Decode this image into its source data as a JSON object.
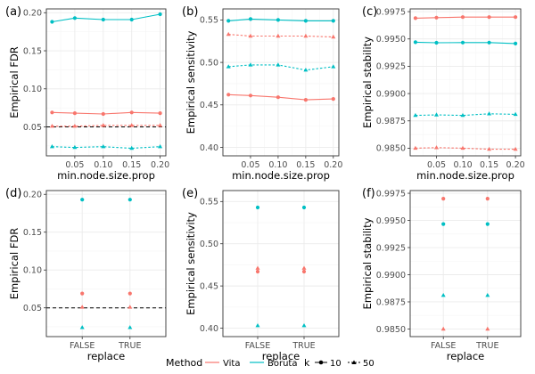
{
  "colors": {
    "vita": "#F8766D",
    "boruta": "#00BFC4",
    "grid_major": "#EBEBEB",
    "grid_minor": "#F5F5F5",
    "border": "#333333",
    "reference": "#000000"
  },
  "legend": {
    "method_title": "Method",
    "method_items": [
      "Vita",
      "Boruta"
    ],
    "k_title": "k",
    "k_items": [
      "10",
      "50"
    ]
  },
  "chart_data": [
    {
      "tag": "(a)",
      "type": "line",
      "xlabel": "min.node.size.prop",
      "ylabel": "Empirical FDR",
      "x": [
        0.01,
        0.05,
        0.1,
        0.15,
        0.2
      ],
      "xlim": [
        0.0,
        0.21
      ],
      "ylim": [
        0.012,
        0.205
      ],
      "xticks": [
        0.05,
        0.1,
        0.15,
        0.2
      ],
      "xtick_labels": [
        "0.05",
        "0.10",
        "0.15",
        "0.20"
      ],
      "yticks": [
        0.05,
        0.1,
        0.15,
        0.2
      ],
      "ytick_labels": [
        "0.05",
        "0.10",
        "0.15",
        "0.20"
      ],
      "reference_line": 0.05,
      "series": [
        {
          "name": "Vita",
          "k": "10",
          "values": [
            0.069,
            0.068,
            0.067,
            0.069,
            0.068
          ]
        },
        {
          "name": "Vita",
          "k": "50",
          "values": [
            0.051,
            0.051,
            0.052,
            0.052,
            0.052
          ]
        },
        {
          "name": "Boruta",
          "k": "10",
          "values": [
            0.188,
            0.193,
            0.191,
            0.191,
            0.198
          ]
        },
        {
          "name": "Boruta",
          "k": "50",
          "values": [
            0.024,
            0.023,
            0.024,
            0.022,
            0.024
          ]
        }
      ]
    },
    {
      "tag": "(b)",
      "type": "line",
      "xlabel": "min.node.size.prop",
      "ylabel": "Empirical sensitivity",
      "x": [
        0.01,
        0.05,
        0.1,
        0.15,
        0.2
      ],
      "xlim": [
        0.0,
        0.21
      ],
      "ylim": [
        0.39,
        0.563
      ],
      "xticks": [
        0.05,
        0.1,
        0.15,
        0.2
      ],
      "xtick_labels": [
        "0.05",
        "0.10",
        "0.15",
        "0.20"
      ],
      "yticks": [
        0.4,
        0.45,
        0.5,
        0.55
      ],
      "ytick_labels": [
        "0.40",
        "0.45",
        "0.50",
        "0.55"
      ],
      "series": [
        {
          "name": "Vita",
          "k": "10",
          "values": [
            0.462,
            0.461,
            0.459,
            0.456,
            0.457
          ]
        },
        {
          "name": "Vita",
          "k": "50",
          "values": [
            0.533,
            0.531,
            0.531,
            0.531,
            0.53
          ]
        },
        {
          "name": "Boruta",
          "k": "10",
          "values": [
            0.549,
            0.551,
            0.55,
            0.549,
            0.549
          ]
        },
        {
          "name": "Boruta",
          "k": "50",
          "values": [
            0.495,
            0.497,
            0.497,
            0.491,
            0.495
          ]
        }
      ]
    },
    {
      "tag": "(c)",
      "type": "line",
      "xlabel": "min.node.size.prop",
      "ylabel": "Empirical stability",
      "x": [
        0.01,
        0.05,
        0.1,
        0.15,
        0.2
      ],
      "xlim": [
        0.0,
        0.21
      ],
      "ylim": [
        0.9843,
        0.99775
      ],
      "xticks": [
        0.05,
        0.1,
        0.15,
        0.2
      ],
      "xtick_labels": [
        "0.05",
        "0.10",
        "0.15",
        "0.20"
      ],
      "yticks": [
        0.985,
        0.9875,
        0.99,
        0.9925,
        0.995,
        0.9975
      ],
      "ytick_labels": [
        "0.9850",
        "0.9875",
        "0.9900",
        "0.9925",
        "0.9950",
        "0.9975"
      ],
      "series": [
        {
          "name": "Vita",
          "k": "10",
          "values": [
            0.9969,
            0.99695,
            0.997,
            0.997,
            0.997
          ]
        },
        {
          "name": "Vita",
          "k": "50",
          "values": [
            0.985,
            0.98505,
            0.985,
            0.9849,
            0.9849
          ]
        },
        {
          "name": "Boruta",
          "k": "10",
          "values": [
            0.9947,
            0.99465,
            0.99467,
            0.99467,
            0.99458
          ]
        },
        {
          "name": "Boruta",
          "k": "50",
          "values": [
            0.988,
            0.98805,
            0.988,
            0.98815,
            0.9881
          ]
        }
      ]
    },
    {
      "tag": "(d)",
      "type": "scatter",
      "xlabel": "replace",
      "ylabel": "Empirical FDR",
      "categories": [
        "FALSE",
        "TRUE"
      ],
      "ylim": [
        0.012,
        0.205
      ],
      "yticks": [
        0.05,
        0.1,
        0.15,
        0.2
      ],
      "ytick_labels": [
        "0.05",
        "0.10",
        "0.15",
        "0.20"
      ],
      "reference_line": 0.05,
      "series": [
        {
          "name": "Vita",
          "k": "10",
          "values": [
            0.069,
            0.069
          ]
        },
        {
          "name": "Vita",
          "k": "50",
          "values": [
            0.051,
            0.051
          ]
        },
        {
          "name": "Boruta",
          "k": "10",
          "values": [
            0.193,
            0.193
          ]
        },
        {
          "name": "Boruta",
          "k": "50",
          "values": [
            0.024,
            0.024
          ]
        }
      ]
    },
    {
      "tag": "(e)",
      "type": "scatter",
      "xlabel": "replace",
      "ylabel": "Empirical sensitivity",
      "categories": [
        "FALSE",
        "TRUE"
      ],
      "ylim": [
        0.39,
        0.563
      ],
      "yticks": [
        0.4,
        0.45,
        0.5,
        0.55
      ],
      "ytick_labels": [
        "0.40",
        "0.45",
        "0.50",
        "0.55"
      ],
      "series": [
        {
          "name": "Vita",
          "k": "10",
          "values": [
            0.467,
            0.467
          ]
        },
        {
          "name": "Vita",
          "k": "50",
          "values": [
            0.471,
            0.471
          ]
        },
        {
          "name": "Boruta",
          "k": "10",
          "values": [
            0.543,
            0.543
          ]
        },
        {
          "name": "Boruta",
          "k": "50",
          "values": [
            0.403,
            0.403
          ]
        }
      ]
    },
    {
      "tag": "(f)",
      "type": "scatter",
      "xlabel": "replace",
      "ylabel": "Empirical stability",
      "categories": [
        "FALSE",
        "TRUE"
      ],
      "ylim": [
        0.9843,
        0.99775
      ],
      "yticks": [
        0.985,
        0.9875,
        0.99,
        0.9925,
        0.995,
        0.9975
      ],
      "ytick_labels": [
        "0.9850",
        "0.9875",
        "0.9900",
        "0.9925",
        "0.9950",
        "0.9975"
      ],
      "series": [
        {
          "name": "Vita",
          "k": "10",
          "values": [
            0.997,
            0.997
          ]
        },
        {
          "name": "Vita",
          "k": "50",
          "values": [
            0.985,
            0.985
          ]
        },
        {
          "name": "Boruta",
          "k": "10",
          "values": [
            0.99467,
            0.99467
          ]
        },
        {
          "name": "Boruta",
          "k": "50",
          "values": [
            0.9881,
            0.9881
          ]
        }
      ]
    }
  ]
}
